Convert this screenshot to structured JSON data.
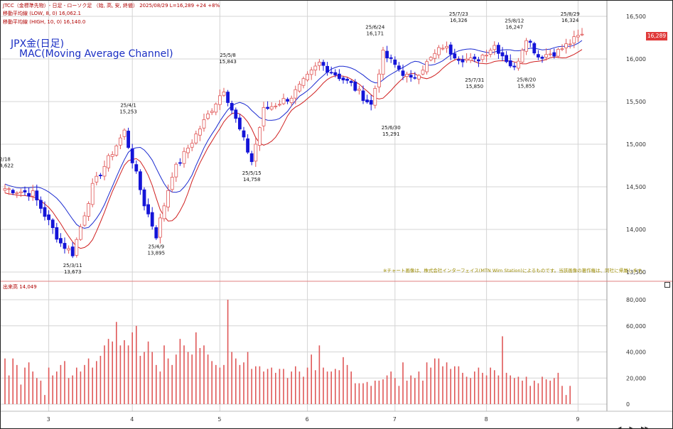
{
  "header": {
    "line1": "JTCC（金標準先物）- 日足 - ローソク足 （始, 高, 安, 終値） 2025/08/29 L=16,289 +24 +8%",
    "line2": "移動平均線 (LOW, 8, 0) 16,062.1",
    "line3": "移動平均線 (HIGH, 10, 0) 16,140.0"
  },
  "title_line1": "JPX金(日足)",
  "title_line2": "MAC(Moving Average Channel)",
  "volume_label": "出来高 14,049",
  "note": "※チャート画像は、株式会社インターフェイス(MTN Wim Station)によるものです。当該画像の著作権は、同社に帰属します。",
  "last_price_tag": "16,289",
  "colors": {
    "up": "#e05858",
    "down": "#1414d8",
    "ma_high": "#1a2ad0",
    "ma_low": "#d02020",
    "volume": "#e05858",
    "grid": "#d4d4d4"
  },
  "chart_data": [
    {
      "type": "candlestick",
      "name": "price",
      "ylim": [
        13500,
        16500
      ],
      "y_ticks": [
        "13,500",
        "14,000",
        "14,500",
        "15,000",
        "15,500",
        "16,000",
        "16,500"
      ],
      "x_ticks": [
        "3",
        "4",
        "5",
        "6",
        "7",
        "8",
        "9"
      ],
      "series_names": [
        "移動平均線 (HIGH, 10, 0)",
        "移動平均線 (LOW, 8, 0)"
      ],
      "annotations": [
        {
          "date": "2/18",
          "value": "14,622"
        },
        {
          "date": "25/3/11",
          "value": "13,673"
        },
        {
          "date": "25/4/1",
          "value": "15,253"
        },
        {
          "date": "25/4/9",
          "value": "13,895"
        },
        {
          "date": "25/5/8",
          "value": "15,843"
        },
        {
          "date": "25/5/15",
          "value": "14,758"
        },
        {
          "date": "25/6/24",
          "value": "16,171"
        },
        {
          "date": "25/6/30",
          "value": "15,291"
        },
        {
          "date": "25/7/23",
          "value": "16,326"
        },
        {
          "date": "25/7/31",
          "value": "15,850"
        },
        {
          "date": "25/8/12",
          "value": "16,247"
        },
        {
          "date": "25/8/20",
          "value": "15,855"
        },
        {
          "date": "25/8/29",
          "value": "16,324"
        }
      ],
      "anchors": [
        [
          0,
          14480
        ],
        [
          7,
          14420
        ],
        [
          14,
          13840
        ],
        [
          17,
          13720
        ],
        [
          22,
          14500
        ],
        [
          30,
          15150
        ],
        [
          35,
          14300
        ],
        [
          38,
          13930
        ],
        [
          42,
          14650
        ],
        [
          45,
          14880
        ],
        [
          55,
          15650
        ],
        [
          62,
          14800
        ],
        [
          65,
          15400
        ],
        [
          72,
          15560
        ],
        [
          79,
          15950
        ],
        [
          87,
          15700
        ],
        [
          92,
          15460
        ],
        [
          95,
          16060
        ],
        [
          102,
          15750
        ],
        [
          110,
          16150
        ],
        [
          114,
          16020
        ],
        [
          118,
          15970
        ],
        [
          123,
          16160
        ],
        [
          128,
          15880
        ],
        [
          131,
          16260
        ],
        [
          134,
          16030
        ],
        [
          139,
          16090
        ],
        [
          145,
          16290
        ]
      ],
      "volume": {
        "ylim": [
          0,
          90000
        ],
        "y_ticks": [
          "0",
          "20,000",
          "40,000",
          "60,000",
          "80,000"
        ],
        "values": [
          35000,
          22000,
          35000,
          30000,
          15000,
          28000,
          32000,
          25000,
          20000,
          18000,
          7000,
          28000,
          22000,
          25000,
          30000,
          33000,
          20000,
          22000,
          28000,
          25000,
          30000,
          35000,
          28000,
          33000,
          37000,
          45000,
          50000,
          48000,
          63000,
          45000,
          49000,
          45000,
          55000,
          60000,
          37000,
          40000,
          48000,
          40000,
          30000,
          25000,
          45000,
          35000,
          30000,
          38000,
          50000,
          45000,
          40000,
          38000,
          55000,
          43000,
          45000,
          38000,
          33000,
          30000,
          28000,
          30000,
          80000,
          40000,
          35000,
          30000,
          32000,
          40000,
          27000,
          29000,
          29000,
          25000,
          27000,
          28000,
          24000,
          27000,
          27000,
          20000,
          25000,
          29000,
          25000,
          21000,
          28000,
          38000,
          26000,
          45000,
          28000,
          25000,
          25000,
          27000,
          26000,
          36000,
          30000,
          25000,
          16000,
          16000,
          16000,
          17000,
          14000,
          18000,
          18000,
          19000,
          22000,
          25000,
          20000,
          14000,
          32000,
          18000,
          22000,
          20000,
          25000,
          18000,
          32000,
          28000,
          35000,
          35000,
          29000,
          32000,
          27000,
          29000,
          29000,
          24000,
          21000,
          20000,
          25000,
          28000,
          24000,
          22000,
          28000,
          26000,
          22000,
          52000,
          24000,
          22000,
          20000,
          21000,
          18000,
          21000,
          14000,
          18000,
          16000,
          21000,
          19000,
          18000,
          20000,
          24000,
          14000,
          7000,
          14000
        ]
      }
    }
  ]
}
